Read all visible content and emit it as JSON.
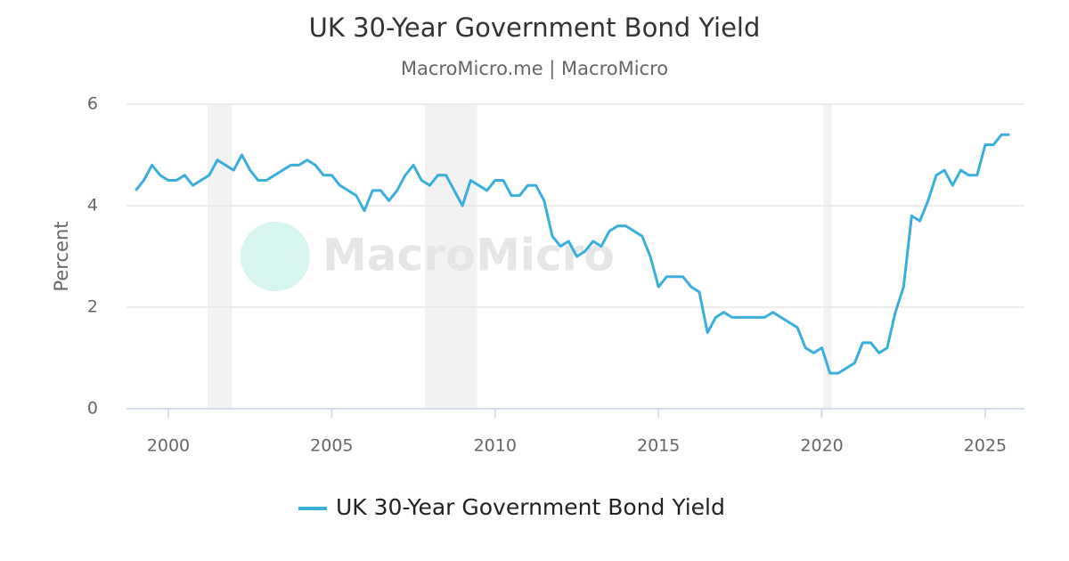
{
  "chart_data": {
    "type": "line",
    "title": "UK 30-Year Government Bond Yield",
    "subtitle": "MacroMicro.me | MacroMicro",
    "watermark": "MacroMicro",
    "y_label": "Percent",
    "xlim": [
      1998.72,
      2026.2
    ],
    "xticks": [
      2000,
      2005,
      2010,
      2015,
      2020,
      2025
    ],
    "ylim": [
      0,
      6
    ],
    "yticks": [
      0,
      2,
      4,
      6
    ],
    "grid": true,
    "legend": "bottom",
    "recessions": [
      [
        2001.2,
        2001.95
      ],
      [
        2007.85,
        2009.45
      ],
      [
        2020.05,
        2020.3
      ]
    ],
    "x": [
      1999,
      1999.25,
      1999.5,
      1999.75,
      2000,
      2000.25,
      2000.5,
      2000.75,
      2001,
      2001.25,
      2001.5,
      2001.75,
      2002,
      2002.25,
      2002.5,
      2002.75,
      2003,
      2003.25,
      2003.5,
      2003.75,
      2004,
      2004.25,
      2004.5,
      2004.75,
      2005,
      2005.25,
      2005.5,
      2005.75,
      2006,
      2006.25,
      2006.5,
      2006.75,
      2007,
      2007.25,
      2007.5,
      2007.75,
      2008,
      2008.25,
      2008.5,
      2008.75,
      2009,
      2009.25,
      2009.5,
      2009.75,
      2010,
      2010.25,
      2010.5,
      2010.75,
      2011,
      2011.25,
      2011.5,
      2011.75,
      2012,
      2012.25,
      2012.5,
      2012.75,
      2013,
      2013.25,
      2013.5,
      2013.75,
      2014,
      2014.25,
      2014.5,
      2014.75,
      2015,
      2015.25,
      2015.5,
      2015.75,
      2016,
      2016.25,
      2016.5,
      2016.75,
      2017,
      2017.25,
      2017.5,
      2017.75,
      2018,
      2018.25,
      2018.5,
      2018.75,
      2019,
      2019.25,
      2019.5,
      2019.75,
      2020,
      2020.25,
      2020.5,
      2020.75,
      2021,
      2021.25,
      2021.5,
      2021.75,
      2022,
      2022.25,
      2022.5,
      2022.75,
      2023,
      2023.25,
      2023.5,
      2023.75,
      2024,
      2024.25,
      2024.5,
      2024.75,
      2025,
      2025.25,
      2025.5,
      2025.75
    ],
    "series": [
      {
        "name": "UK 30-Year Government Bond Yield",
        "color": "#3aaedc",
        "values": [
          4.3,
          4.5,
          4.8,
          4.6,
          4.5,
          4.5,
          4.6,
          4.4,
          4.5,
          4.6,
          4.9,
          4.8,
          4.7,
          5.0,
          4.7,
          4.5,
          4.5,
          4.6,
          4.7,
          4.8,
          4.8,
          4.9,
          4.8,
          4.6,
          4.6,
          4.4,
          4.3,
          4.2,
          3.9,
          4.3,
          4.3,
          4.1,
          4.3,
          4.6,
          4.8,
          4.5,
          4.4,
          4.6,
          4.6,
          4.3,
          4.0,
          4.5,
          4.4,
          4.3,
          4.5,
          4.5,
          4.2,
          4.2,
          4.4,
          4.4,
          4.1,
          3.4,
          3.2,
          3.3,
          3.0,
          3.1,
          3.3,
          3.2,
          3.5,
          3.6,
          3.6,
          3.5,
          3.4,
          3.0,
          2.4,
          2.6,
          2.6,
          2.6,
          2.4,
          2.3,
          1.5,
          1.8,
          1.9,
          1.8,
          1.8,
          1.8,
          1.8,
          1.8,
          1.9,
          1.8,
          1.7,
          1.6,
          1.2,
          1.1,
          1.2,
          0.7,
          0.7,
          0.8,
          0.9,
          1.3,
          1.3,
          1.1,
          1.2,
          1.9,
          2.4,
          3.8,
          3.7,
          4.1,
          4.6,
          4.7,
          4.4,
          4.7,
          4.6,
          4.6,
          5.2,
          5.2,
          5.4,
          5.4
        ]
      }
    ]
  }
}
